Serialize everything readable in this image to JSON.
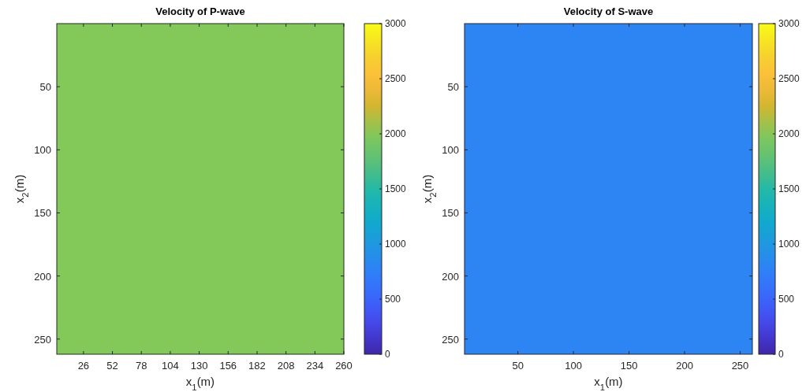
{
  "chart_data": [
    {
      "type": "heatmap",
      "title": "Velocity of P-wave",
      "xlabel": "x$_{1}$(m)",
      "ylabel": "x$_{2}$(m)",
      "cells": [
        [
          2000
        ]
      ],
      "xlim": [
        2,
        260
      ],
      "xticks": [
        26,
        52,
        78,
        104,
        130,
        156,
        182,
        208,
        234,
        260
      ],
      "ylim": [
        262,
        0
      ],
      "yticks": [
        50,
        100,
        150,
        200,
        250
      ],
      "clim": [
        0,
        3000
      ],
      "cticks": [
        0,
        500,
        1000,
        1500,
        2000,
        2500,
        3000
      ]
    },
    {
      "type": "heatmap",
      "title": "Velocity of S-wave",
      "xlabel": "x$_{1}$(m)",
      "ylabel": "x$_{2}$(m)",
      "cells": [
        [
          800
        ]
      ],
      "xlim": [
        2,
        261
      ],
      "xticks": [
        50,
        100,
        150,
        200,
        250
      ],
      "ylim": [
        262,
        0
      ],
      "yticks": [
        50,
        100,
        150,
        200,
        250
      ],
      "clim": [
        0,
        3000
      ],
      "cticks": [
        0,
        500,
        1000,
        1500,
        2000,
        2500,
        3000
      ]
    }
  ]
}
